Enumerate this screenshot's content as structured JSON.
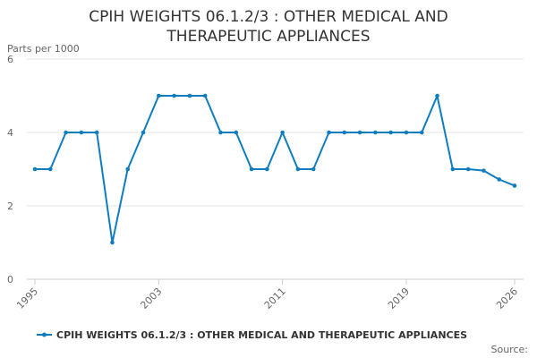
{
  "chart_data": {
    "type": "line",
    "title_lines": [
      "CPIH WEIGHTS 06.1.2/3 : OTHER MEDICAL AND",
      "THERAPEUTIC APPLIANCES"
    ],
    "ylabel": "Parts per 1000",
    "xlabel": "",
    "ylim": [
      0,
      6
    ],
    "yticks": [
      "0",
      "2",
      "4",
      "6"
    ],
    "xlim": [
      1995,
      2026
    ],
    "xticks": [
      "1995",
      "2003",
      "2011",
      "2019",
      "2026"
    ],
    "grid": true,
    "legend_position": "bottom",
    "color": "#0f7dc0",
    "x": [
      1995,
      1996,
      1997,
      1998,
      1999,
      2000,
      2001,
      2002,
      2003,
      2004,
      2005,
      2006,
      2007,
      2008,
      2009,
      2010,
      2011,
      2012,
      2013,
      2014,
      2015,
      2016,
      2017,
      2018,
      2019,
      2020,
      2021,
      2022,
      2023,
      2024,
      2025,
      2026
    ],
    "series": [
      {
        "name": "CPIH WEIGHTS 06.1.2/3 : OTHER MEDICAL AND THERAPEUTIC APPLIANCES",
        "values": [
          3,
          3,
          4,
          4,
          4,
          1,
          3,
          4,
          5,
          5,
          5,
          5,
          4,
          4,
          3,
          3,
          4,
          3,
          3,
          4,
          4,
          4,
          4,
          4,
          4,
          4,
          5,
          3,
          3,
          2.96,
          2.72,
          2.55
        ]
      }
    ],
    "source_label": "Source:"
  }
}
